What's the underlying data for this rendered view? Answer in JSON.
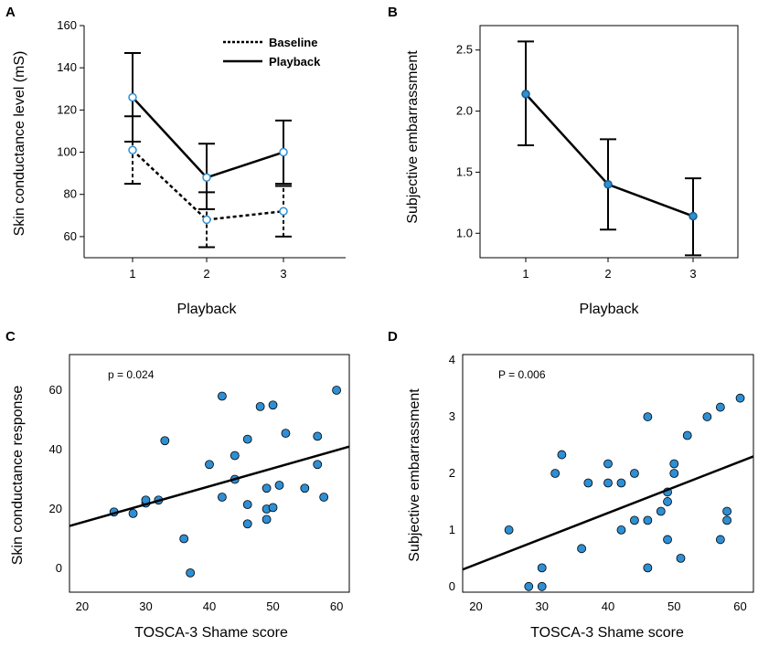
{
  "figure": {
    "background": "#ffffff"
  },
  "chart_data": [
    {
      "id": "A",
      "type": "line",
      "panel_label": "A",
      "xlabel": "Playback",
      "ylabel": "Skin conductance level (mS)",
      "categories": [
        "1",
        "2",
        "3"
      ],
      "ylim": [
        50,
        160
      ],
      "yticks": [
        60,
        80,
        100,
        120,
        140,
        160
      ],
      "legend": {
        "placement": "top-right"
      },
      "series": [
        {
          "name": "Baseline",
          "style": "dashed",
          "values": [
            101,
            68,
            72
          ],
          "err_low": [
            85,
            55,
            60
          ],
          "err_high": [
            117,
            81,
            84
          ]
        },
        {
          "name": "Playback",
          "style": "solid",
          "values": [
            126,
            88,
            100
          ],
          "err_low": [
            105,
            73,
            85
          ],
          "err_high": [
            147,
            104,
            115
          ]
        }
      ],
      "colors": {
        "line": "#000000",
        "marker": "#2e8fd4"
      }
    },
    {
      "id": "B",
      "type": "line",
      "panel_label": "B",
      "xlabel": "Playback",
      "ylabel": "Subjective embarrassment",
      "categories": [
        "1",
        "2",
        "3"
      ],
      "ylim": [
        0.8,
        2.7
      ],
      "yticks": [
        "1.0",
        "1.5",
        "2.0",
        "2.5"
      ],
      "series": [
        {
          "name": "Subjective embarrassment",
          "style": "solid",
          "values": [
            2.14,
            1.4,
            1.14
          ],
          "err_low": [
            1.72,
            1.03,
            0.82
          ],
          "err_high": [
            2.57,
            1.77,
            1.45
          ]
        }
      ],
      "colors": {
        "line": "#000000",
        "marker": "#2e8fd4"
      }
    },
    {
      "id": "C",
      "type": "scatter",
      "panel_label": "C",
      "xlabel": "TOSCA-3 Shame score",
      "ylabel": "Skin conductance response",
      "annotation": "p = 0.024",
      "xlim": [
        18,
        62
      ],
      "ylim": [
        -8,
        72
      ],
      "xticks": [
        20,
        30,
        40,
        50,
        60
      ],
      "yticks": [
        0,
        20,
        40,
        60
      ],
      "x": [
        25,
        28,
        30,
        30,
        32,
        33,
        36,
        37,
        40,
        42,
        42,
        44,
        44,
        46,
        46,
        46,
        48,
        49,
        49,
        49,
        50,
        50,
        51,
        52,
        55,
        57,
        57,
        58,
        60
      ],
      "y": [
        19,
        18.5,
        22,
        23,
        23,
        43,
        10,
        -1.5,
        35,
        58,
        24,
        38,
        30,
        43.5,
        21.5,
        15,
        54.5,
        27,
        20,
        16.5,
        55,
        20.5,
        28,
        45.5,
        27,
        44.5,
        35,
        24,
        60
      ],
      "trendline": {
        "x": [
          18,
          62
        ],
        "y": [
          14.3,
          41.0
        ]
      },
      "colors": {
        "point": "#2e8fd4",
        "line": "#000000"
      }
    },
    {
      "id": "D",
      "type": "scatter",
      "panel_label": "D",
      "xlabel": "TOSCA-3 Shame score",
      "ylabel": "Subjective embarrassment",
      "annotation": "P = 0.006",
      "xlim": [
        18,
        62
      ],
      "ylim": [
        -0.1,
        4.1
      ],
      "xticks": [
        20,
        30,
        40,
        50,
        60
      ],
      "yticks": [
        0,
        1,
        2,
        3,
        4
      ],
      "x": [
        25,
        28,
        30,
        30,
        32,
        33,
        36,
        37,
        40,
        40,
        42,
        42,
        44,
        44,
        46,
        46,
        46,
        48,
        49,
        49,
        49,
        50,
        50,
        51,
        52,
        55,
        57,
        57,
        58,
        58,
        60
      ],
      "y": [
        1.0,
        0.0,
        0.0,
        0.33,
        2.0,
        2.33,
        0.67,
        1.83,
        2.17,
        1.83,
        1.83,
        1.0,
        2.0,
        1.17,
        3.0,
        1.17,
        0.33,
        1.33,
        1.67,
        1.5,
        0.83,
        2.0,
        2.17,
        0.5,
        2.67,
        3.0,
        3.17,
        0.83,
        1.33,
        1.17,
        3.33
      ],
      "trendline": {
        "x": [
          18,
          62
        ],
        "y": [
          0.3,
          2.3
        ]
      },
      "colors": {
        "point": "#2e8fd4",
        "line": "#000000"
      }
    }
  ]
}
